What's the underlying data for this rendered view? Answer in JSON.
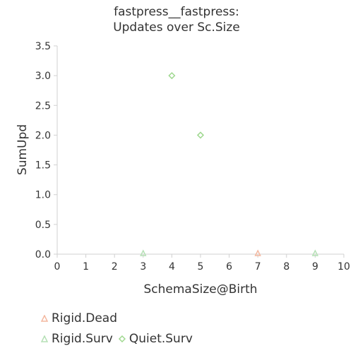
{
  "chart_data": {
    "type": "scatter",
    "title_line1": "fastpress__fastpress:",
    "title_line2": "Updates over Sc.Size",
    "xlabel": "SchemaSize@Birth",
    "ylabel": "SumUpd",
    "xlim": [
      0,
      10
    ],
    "ylim": [
      0,
      3.5
    ],
    "x_ticks": [
      "0",
      "1",
      "2",
      "3",
      "4",
      "5",
      "6",
      "7",
      "8",
      "9",
      "10"
    ],
    "y_ticks": [
      "0.0",
      "0.5",
      "1.0",
      "1.5",
      "2.0",
      "2.5",
      "3.0",
      "3.5"
    ],
    "grid": false,
    "legend_position": "bottom-left",
    "series": [
      {
        "name": "Rigid.Dead",
        "marker": "triangle",
        "color": "#f4b8a0",
        "points": [
          {
            "x": 7,
            "y": 0
          }
        ]
      },
      {
        "name": "Rigid.Surv",
        "marker": "triangle",
        "color": "#b5e0b5",
        "points": [
          {
            "x": 3,
            "y": 0
          },
          {
            "x": 9,
            "y": 0
          }
        ]
      },
      {
        "name": "Quiet.Surv",
        "marker": "diamond",
        "color": "#9fd88f",
        "points": [
          {
            "x": 4,
            "y": 3
          },
          {
            "x": 5,
            "y": 2
          }
        ]
      }
    ]
  }
}
